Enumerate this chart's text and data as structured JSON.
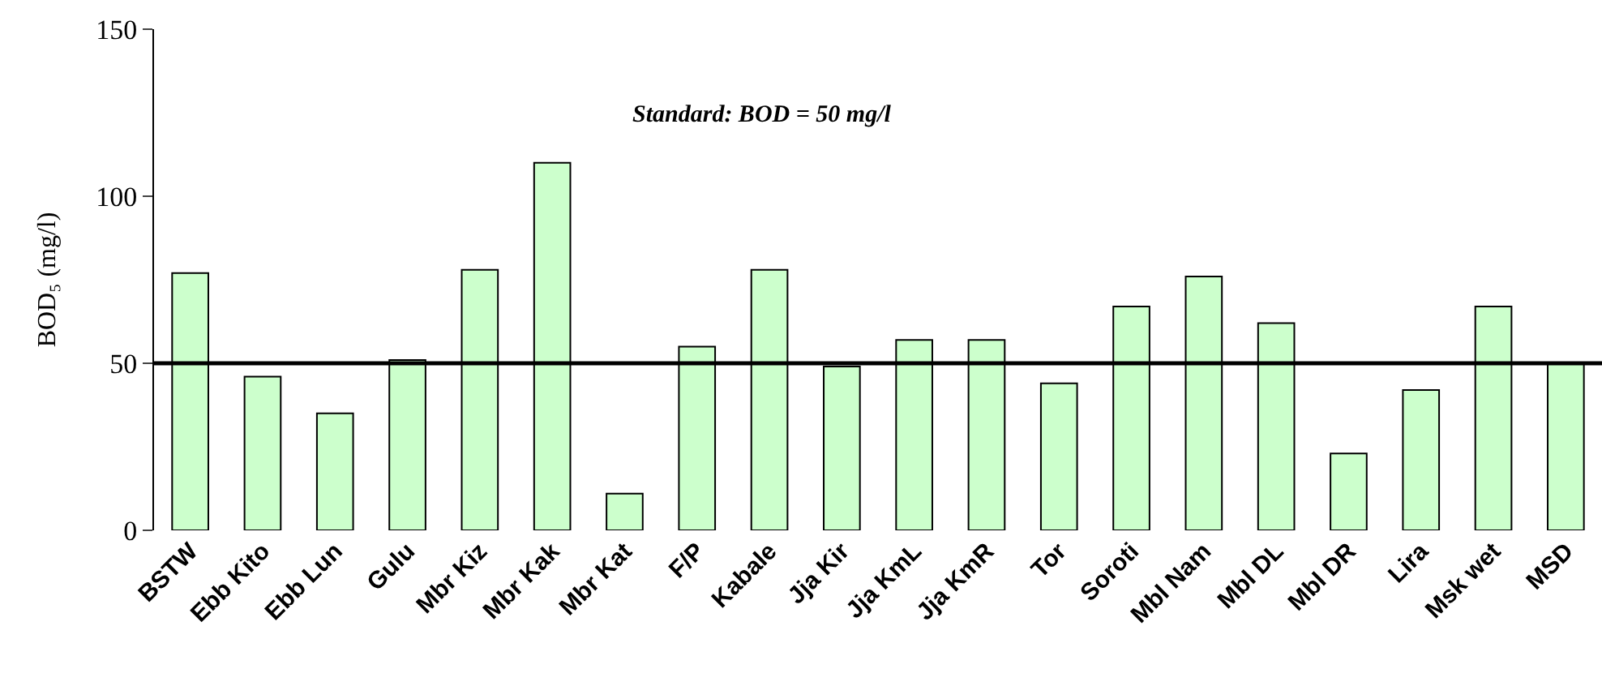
{
  "chart_data": {
    "type": "bar",
    "ylabel": "BOD₅ (mg/l)",
    "categories": [
      "BSTW",
      "Ebb Kito",
      "Ebb Lun",
      "Gulu",
      "Mbr Kiz",
      "Mbr Kak",
      "Mbr Kat",
      "F/P",
      "Kabale",
      "Jja Kir",
      "Jja KmL",
      "Jja KmR",
      "Tor",
      "Soroti",
      "Mbl Nam",
      "Mbl DL",
      "Mbl DR",
      "Lira",
      "Msk wet",
      "MSD"
    ],
    "values": [
      77,
      46,
      35,
      51,
      78,
      110,
      11,
      55,
      78,
      49,
      57,
      57,
      44,
      67,
      76,
      62,
      23,
      42,
      67,
      50
    ],
    "color": "#ccffcc",
    "ylim": [
      0,
      150
    ],
    "yticks": [
      0,
      50,
      100,
      150
    ],
    "grid": false,
    "ref_lines": [
      {
        "axis": "y",
        "value": 50,
        "label": "Standard: BOD = 50 mg/l",
        "color": "#000000"
      }
    ]
  }
}
